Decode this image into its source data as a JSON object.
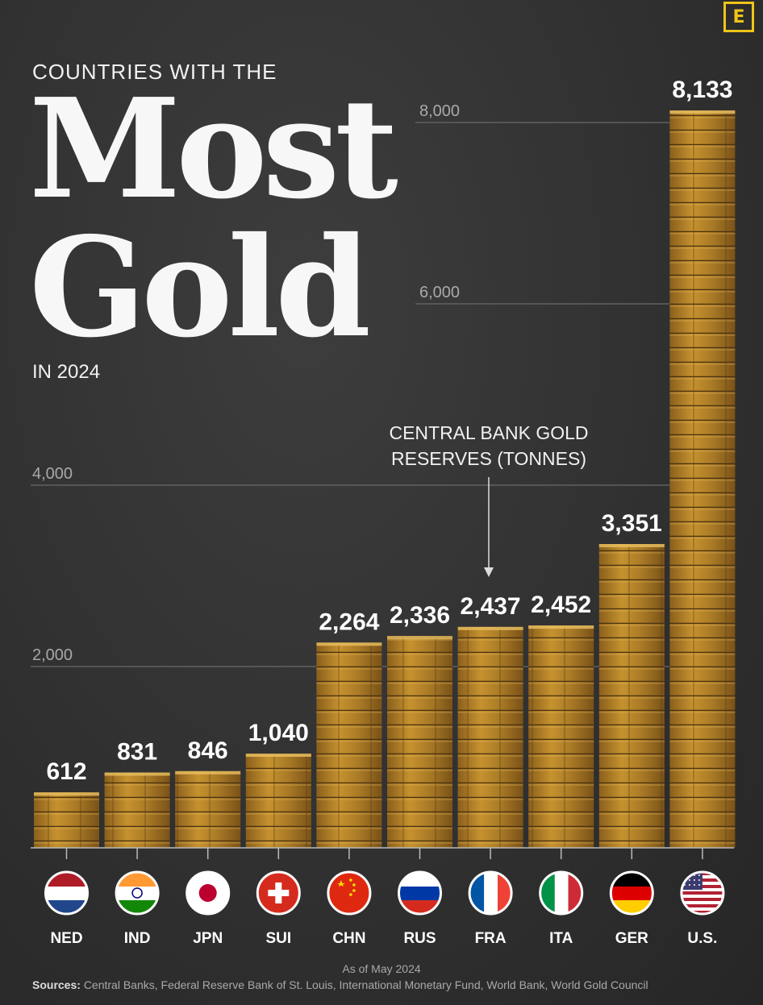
{
  "header": {
    "logo_letter": "E",
    "kicker": "COUNTRIES WITH THE",
    "title_line1": "Most",
    "title_line2": "Gold",
    "year_line": "IN 2024"
  },
  "colors": {
    "background": "#333333",
    "gold": "#b8862c",
    "accent": "#f0c419",
    "gridline": "#6a6a6a",
    "text": "#ffffff"
  },
  "chart_data": {
    "type": "bar",
    "title": "CENTRAL BANK GOLD RESERVES (TONNES)",
    "annotation_lines": [
      "CENTRAL BANK GOLD",
      "RESERVES (TONNES)"
    ],
    "categories": [
      "NED",
      "IND",
      "JPN",
      "SUI",
      "CHN",
      "RUS",
      "FRA",
      "ITA",
      "GER",
      "U.S."
    ],
    "values": [
      612,
      831,
      846,
      1040,
      2264,
      2336,
      2437,
      2452,
      3351,
      8133
    ],
    "value_labels": [
      "612",
      "831",
      "846",
      "1,040",
      "2,264",
      "2,336",
      "2,437",
      "2,452",
      "3,351",
      "8,133"
    ],
    "flag_icons": [
      "netherlands-flag",
      "india-flag",
      "japan-flag",
      "switzerland-flag",
      "china-flag",
      "russia-flag",
      "france-flag",
      "italy-flag",
      "germany-flag",
      "usa-flag"
    ],
    "yticks": [
      2000,
      4000,
      6000,
      8000
    ],
    "ytick_labels": [
      "2,000",
      "4,000",
      "6,000",
      "8,000"
    ],
    "ylim": [
      0,
      8133
    ],
    "grid": true,
    "xlabel": "",
    "ylabel": ""
  },
  "footer": {
    "as_of": "As of May 2024",
    "sources_label": "Sources:",
    "sources_text": "Central Banks, Federal Reserve Bank of St. Louis, International Monetary Fund, World Bank, World Gold Council"
  }
}
